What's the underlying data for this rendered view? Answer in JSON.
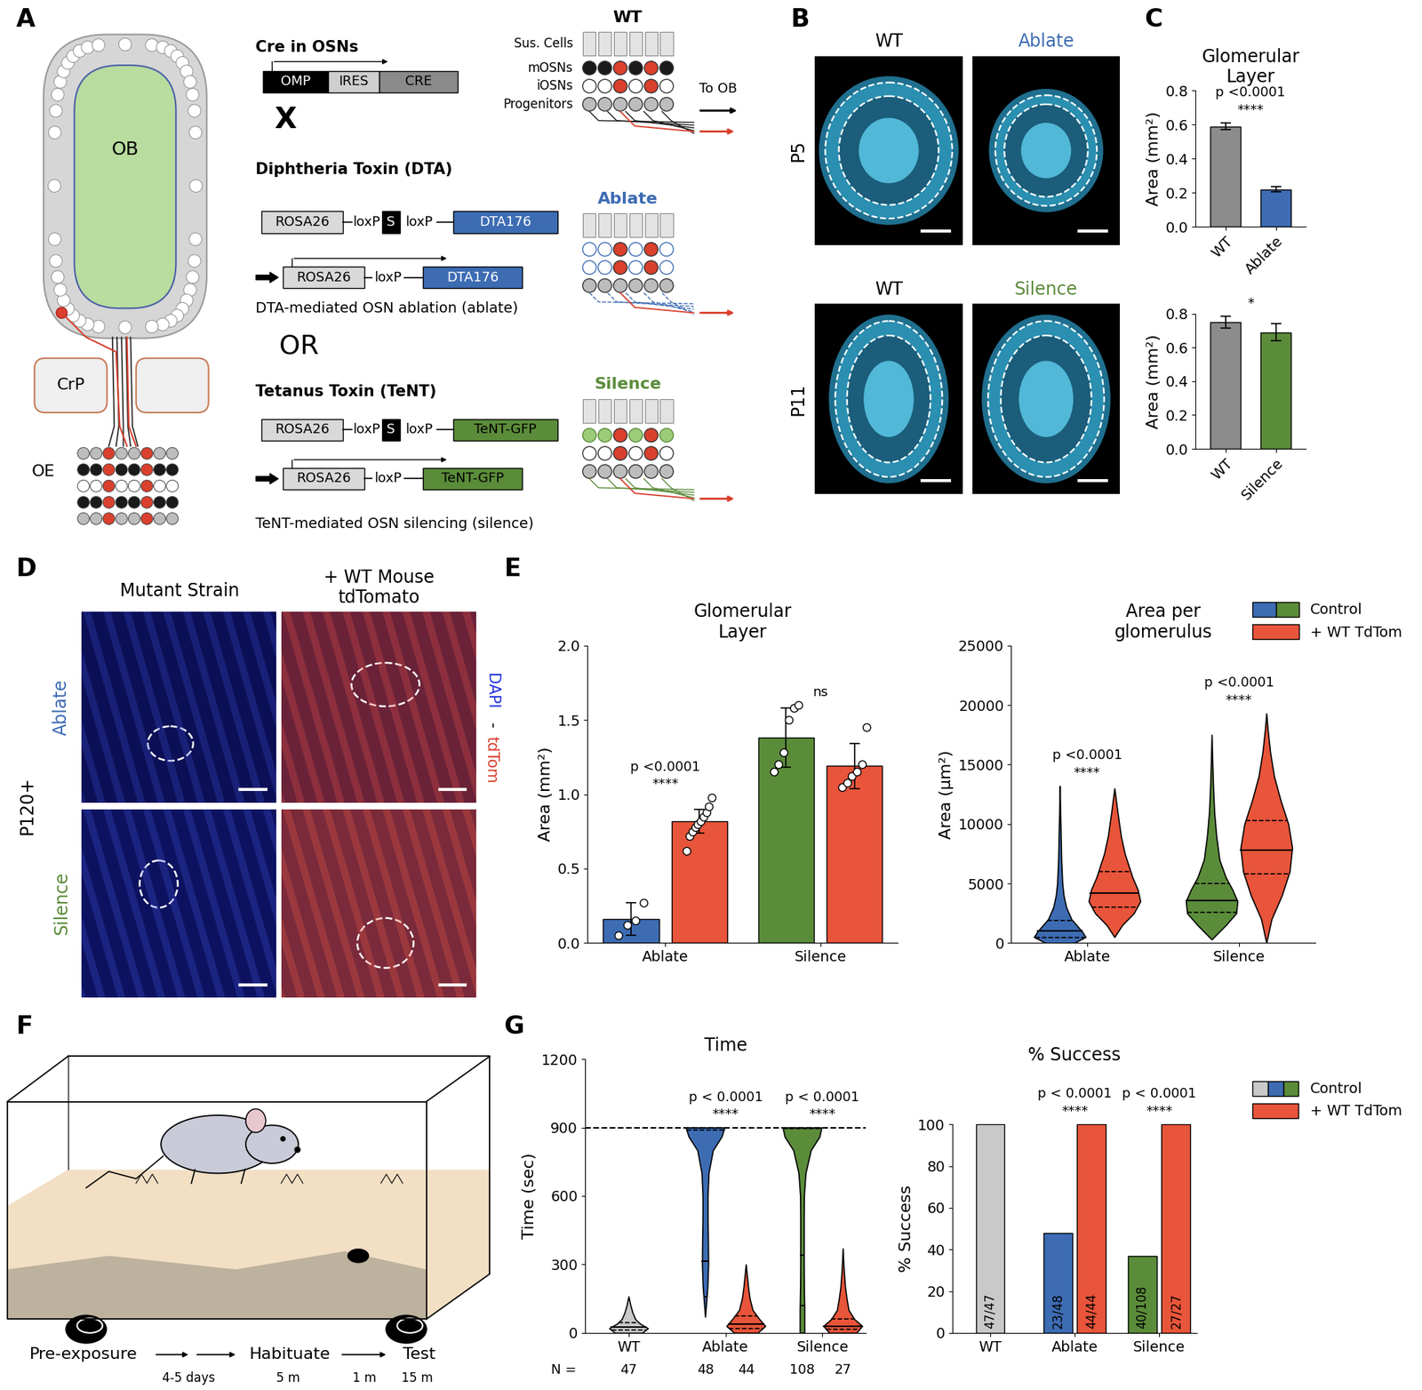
{
  "panel_labels": [
    "A",
    "B",
    "C",
    "D",
    "E",
    "F",
    "G"
  ],
  "panel_A": {
    "schematic": {
      "ob": "OB",
      "crp": "CrP",
      "oe": "OE"
    },
    "cre": {
      "title": "Cre in OSNs",
      "construct": [
        "OMP",
        "IRES",
        "CRE"
      ]
    },
    "cross": "X",
    "dta": {
      "title": "Diphtheria Toxin (DTA)",
      "construct": [
        "ROSA26",
        "loxP",
        "S",
        "loxP",
        "DTA176"
      ],
      "recombined": [
        "ROSA26",
        "loxP",
        "DTA176"
      ],
      "caption": "DTA-mediated OSN ablation (ablate)"
    },
    "or": "OR",
    "tent": {
      "title": "Tetanus Toxin (TeNT)",
      "construct": [
        "ROSA26",
        "loxP",
        "S",
        "loxP",
        "TeNT-GFP"
      ],
      "recombined": [
        "ROSA26",
        "loxP",
        "TeNT-GFP"
      ],
      "caption": "TeNT-mediated OSN silencing (silence)"
    },
    "epithelium": {
      "conditions": [
        "WT",
        "Ablate",
        "Silence"
      ],
      "layers": [
        "Sus. Cells",
        "mOSNs",
        "iOSNs",
        "Progenitors"
      ],
      "projection": "To OB"
    }
  },
  "panel_B": {
    "rows": [
      {
        "age": "P5",
        "columns": [
          "WT",
          "Ablate"
        ]
      },
      {
        "age": "P11",
        "columns": [
          "WT",
          "Silence"
        ]
      }
    ]
  },
  "panel_D": {
    "age": "P120+",
    "columns": [
      "Mutant Strain",
      "+ WT Mouse\ntdTomato"
    ],
    "rows": [
      "Ablate",
      "Silence"
    ],
    "stain": [
      "DAPI",
      "-",
      "tdTom"
    ]
  },
  "panel_F": {
    "steps": [
      "Pre-exposure",
      "Habituate",
      "Test"
    ],
    "durations": [
      "4-5 days",
      "5 m",
      "1 m",
      "15 m"
    ]
  },
  "chart_data": [
    {
      "type": "bar",
      "title": "Glomerular\nLayer",
      "ylabel": "Area (mm²)",
      "categories": [
        "WT",
        "Ablate"
      ],
      "values": [
        0.59,
        0.22
      ],
      "errors": [
        0.02,
        0.015
      ],
      "colors": [
        "#8c8c8c",
        "#3d6cb3"
      ],
      "ylim": [
        0,
        0.8
      ],
      "yticks": [
        {
          "value": 0,
          "label": "0.0"
        },
        0.2,
        0.4,
        0.6,
        0.8
      ],
      "significance": [
        "p <0.0001",
        "****"
      ]
    },
    {
      "type": "bar",
      "ylabel": "Area (mm²)",
      "categories": [
        "WT",
        "Silence"
      ],
      "values": [
        0.75,
        0.69
      ],
      "errors": [
        0.035,
        0.05
      ],
      "colors": [
        "#8c8c8c",
        "#5b8c3a"
      ],
      "ylim": [
        0,
        0.8
      ],
      "yticks": [
        {
          "value": 0,
          "label": "0.0"
        },
        0.2,
        0.4,
        0.6,
        0.8
      ],
      "significance": [
        "*"
      ]
    },
    {
      "type": "bar",
      "title": "Glomerular\nLayer",
      "ylabel": "Area (mm²)",
      "categories": [
        "Ablate",
        "Silence"
      ],
      "series": [
        {
          "colors": [
            "#3d6cb3",
            "#5b8c3a"
          ],
          "values": [
            0.16,
            1.38
          ],
          "errors": [
            0.11,
            0.2
          ],
          "points": [
            [
              0.05,
              0.12,
              0.15,
              0.27
            ],
            [
              1.15,
              1.2,
              1.28,
              1.5,
              1.58,
              1.6
            ]
          ]
        },
        {
          "color": "#e8553a",
          "values": [
            0.82,
            1.19
          ],
          "errors": [
            0.08,
            0.15
          ],
          "points": [
            [
              0.62,
              0.72,
              0.75,
              0.78,
              0.8,
              0.82,
              0.85,
              0.88,
              0.92,
              0.98
            ],
            [
              1.05,
              1.08,
              1.12,
              1.15,
              1.2,
              1.45
            ]
          ]
        }
      ],
      "ylim": [
        0,
        2.0
      ],
      "yticks": [
        {
          "value": 0,
          "label": "0.0"
        },
        0.5,
        {
          "value": 1,
          "label": "1.0"
        },
        1.5,
        {
          "value": 2,
          "label": "2.0"
        }
      ],
      "significance": [
        [
          "p <0.0001",
          "****"
        ],
        [
          "ns"
        ]
      ]
    },
    {
      "type": "violin",
      "title": "Area per\nglomerulus",
      "ylabel": "Area (μm²)",
      "categories": [
        "Ablate",
        "Silence"
      ],
      "series": [
        {
          "name": "Control",
          "colors": [
            "#3d6cb3",
            "#5b8c3a"
          ],
          "violins": [
            {
              "y": [
                0,
                500,
                1000,
                2000,
                3000,
                4000,
                5000,
                7000,
                9000,
                11000,
                13200
              ],
              "width": [
                0.55,
                1.0,
                0.85,
                0.45,
                0.25,
                0.15,
                0.1,
                0.06,
                0.04,
                0.02,
                0
              ],
              "median": 1000,
              "quartiles": [
                450,
                1900
              ]
            },
            {
              "y": [
                300,
                1500,
                2500,
                3500,
                4500,
                5500,
                7000,
                9000,
                11000,
                13000,
                15000,
                17500
              ],
              "width": [
                0,
                0.55,
                0.95,
                1.0,
                0.8,
                0.55,
                0.3,
                0.18,
                0.1,
                0.06,
                0.03,
                0
              ],
              "median": 3600,
              "quartiles": [
                2600,
                5000
              ]
            }
          ]
        },
        {
          "name": "+ WT TdTom",
          "color": "#e8553a",
          "violins": [
            {
              "y": [
                500,
                1500,
                2500,
                3500,
                4500,
                5500,
                6500,
                7500,
                9000,
                11000,
                13000
              ],
              "width": [
                0,
                0.3,
                0.75,
                1.0,
                0.9,
                0.7,
                0.55,
                0.4,
                0.25,
                0.12,
                0
              ],
              "median": 4200,
              "quartiles": [
                3000,
                6000
              ]
            },
            {
              "y": [
                0,
                2000,
                4000,
                6000,
                8000,
                10000,
                12000,
                14000,
                16000,
                18000,
                19300
              ],
              "width": [
                0,
                0.2,
                0.6,
                0.9,
                1.0,
                0.85,
                0.55,
                0.3,
                0.15,
                0.05,
                0
              ],
              "median": 7800,
              "quartiles": [
                5800,
                10300
              ]
            }
          ]
        }
      ],
      "ylim": [
        0,
        25000
      ],
      "yticks": [
        0,
        5000,
        10000,
        15000,
        20000,
        25000
      ],
      "legend": "upper right",
      "significance": [
        [
          "p <0.0001",
          "****"
        ],
        [
          "p <0.0001",
          "****"
        ]
      ]
    },
    {
      "type": "violin",
      "title": "Time",
      "ylabel": "Time (sec)",
      "categories": [
        "WT",
        "Ablate",
        "Silence"
      ],
      "series": [
        {
          "colors": [
            "#c9c9c9",
            "#3d6cb3",
            "#5b8c3a"
          ],
          "n": [
            47,
            48,
            108
          ],
          "violins": [
            {
              "y": [
                0,
                20,
                40,
                60,
                90,
                120,
                160
              ],
              "width": [
                0.7,
                1.0,
                0.6,
                0.35,
                0.2,
                0.1,
                0
              ],
              "median": 25,
              "quartiles": [
                12,
                45
              ]
            },
            {
              "y": [
                70,
                200,
                300,
                400,
                500,
                600,
                700,
                800,
                860,
                900
              ],
              "width": [
                0,
                0.12,
                0.16,
                0.15,
                0.13,
                0.13,
                0.18,
                0.4,
                0.85,
                1.0
              ],
              "median": 315,
              "quartiles": [
                160,
                890
              ]
            },
            {
              "y": [
                0,
                100,
                200,
                300,
                400,
                500,
                600,
                700,
                800,
                860,
                900
              ],
              "width": [
                0.12,
                0.12,
                0.1,
                0.09,
                0.09,
                0.09,
                0.1,
                0.18,
                0.45,
                0.9,
                1.0
              ],
              "median": 340,
              "quartiles": [
                120,
                895
              ]
            }
          ]
        },
        {
          "color": "#e8553a",
          "n": [
            null,
            44,
            27
          ],
          "violins": [
            null,
            {
              "y": [
                0,
                30,
                60,
                100,
                150,
                200,
                250,
                300
              ],
              "width": [
                0.6,
                1.0,
                0.7,
                0.35,
                0.2,
                0.12,
                0.06,
                0
              ],
              "median": 40,
              "quartiles": [
                20,
                75
              ]
            },
            {
              "y": [
                0,
                30,
                60,
                100,
                150,
                200,
                280,
                370
              ],
              "width": [
                0.7,
                1.0,
                0.6,
                0.3,
                0.2,
                0.12,
                0.05,
                0
              ],
              "median": 30,
              "quartiles": [
                15,
                60
              ]
            }
          ]
        }
      ],
      "n_label": "N =",
      "reference_line": 900,
      "ylim": [
        0,
        1200
      ],
      "yticks": [
        0,
        300,
        600,
        900,
        1200
      ],
      "significance": [
        null,
        [
          "p < 0.0001",
          "****"
        ],
        [
          "p < 0.0001",
          "****"
        ]
      ]
    },
    {
      "type": "bar",
      "title": "% Success",
      "ylabel": "% Success",
      "categories": [
        "WT",
        "Ablate",
        "Silence"
      ],
      "series": [
        {
          "name": "Control",
          "colors": [
            "#c9c9c9",
            "#3d6cb3",
            "#5b8c3a"
          ],
          "values": [
            100,
            47.9,
            37.0
          ],
          "fractions": [
            "47/47",
            "23/48",
            "40/108"
          ]
        },
        {
          "name": "+ WT TdTom",
          "color": "#e8553a",
          "values": [
            null,
            100,
            100
          ],
          "fractions": [
            null,
            "44/44",
            "27/27"
          ]
        }
      ],
      "ylim": [
        0,
        100
      ],
      "yticks": [
        0,
        20,
        40,
        60,
        80,
        100
      ],
      "legend": "upper right",
      "significance": [
        null,
        [
          "p < 0.0001",
          "****"
        ],
        [
          "p < 0.0001",
          "****"
        ]
      ]
    }
  ]
}
